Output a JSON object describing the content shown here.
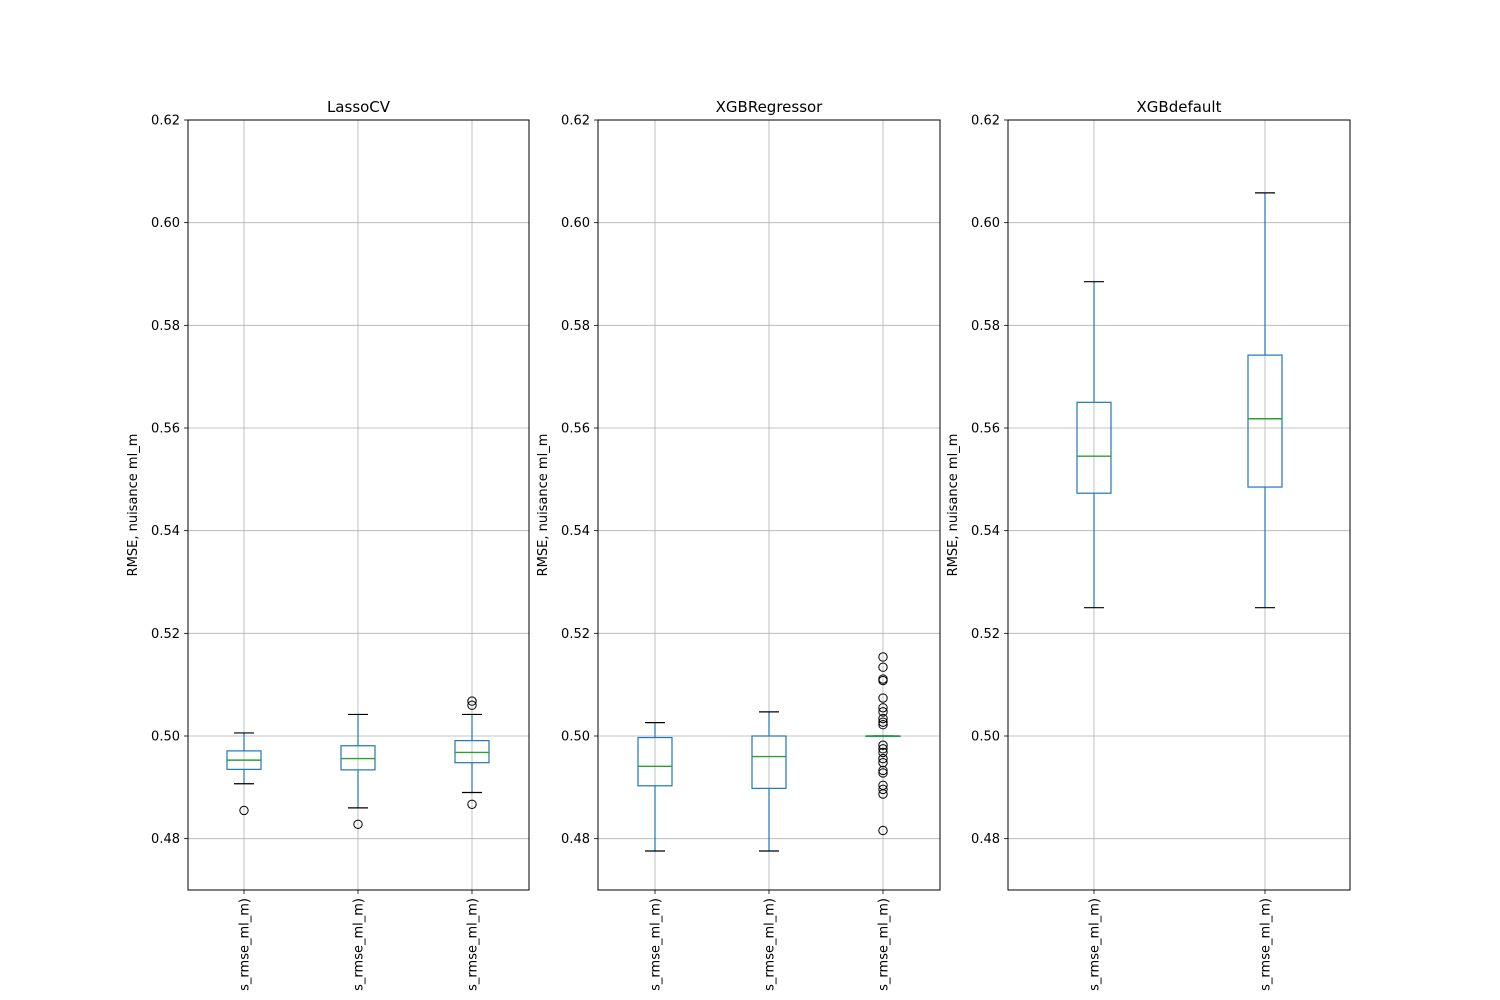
{
  "chart_data": [
    {
      "type": "box",
      "title": "LassoCV",
      "ylabel": "RMSE, nuisance ml_m",
      "ylim": [
        0.47,
        0.62
      ],
      "yticks": [
        "0.48",
        "0.50",
        "0.52",
        "0.54",
        "0.56",
        "0.58",
        "0.60",
        "0.62"
      ],
      "categories": [
        "s_rmse_ml_m)",
        "s_rmse_ml_m)",
        "s_rmse_ml_m)"
      ],
      "boxes": [
        {
          "whislo": 0.4907,
          "q1": 0.4935,
          "med": 0.4953,
          "q3": 0.4971,
          "whishi": 0.5006,
          "fliers": [
            0.4855
          ]
        },
        {
          "whislo": 0.486,
          "q1": 0.4934,
          "med": 0.4956,
          "q3": 0.4981,
          "whishi": 0.5042,
          "fliers": [
            0.4828
          ]
        },
        {
          "whislo": 0.489,
          "q1": 0.4948,
          "med": 0.4968,
          "q3": 0.4991,
          "whishi": 0.5042,
          "fliers": [
            0.5068,
            0.506,
            0.4867
          ]
        }
      ]
    },
    {
      "type": "box",
      "title": "XGBRegressor",
      "ylabel": "RMSE, nuisance ml_m",
      "ylim": [
        0.47,
        0.62
      ],
      "yticks": [
        "0.48",
        "0.50",
        "0.52",
        "0.54",
        "0.56",
        "0.58",
        "0.60",
        "0.62"
      ],
      "categories": [
        "s_rmse_ml_m)",
        "s_rmse_ml_m)",
        "s_rmse_ml_m)"
      ],
      "boxes": [
        {
          "whislo": 0.4776,
          "q1": 0.4903,
          "med": 0.4941,
          "q3": 0.4997,
          "whishi": 0.5026,
          "fliers": []
        },
        {
          "whislo": 0.4776,
          "q1": 0.4898,
          "med": 0.496,
          "q3": 0.5,
          "whishi": 0.5047,
          "fliers": []
        },
        {
          "whislo": 0.5,
          "q1": 0.5,
          "med": 0.5,
          "q3": 0.5,
          "whishi": 0.5,
          "fliers": [
            0.5154,
            0.5134,
            0.5111,
            0.5108,
            0.5074,
            0.5055,
            0.5047,
            0.5034,
            0.5027,
            0.5022,
            0.4982,
            0.4975,
            0.4968,
            0.4956,
            0.4948,
            0.4933,
            0.4928,
            0.4904,
            0.4896,
            0.4887,
            0.4816
          ]
        }
      ]
    },
    {
      "type": "box",
      "title": "XGBdefault",
      "ylabel": "RMSE, nuisance ml_m",
      "ylim": [
        0.47,
        0.62
      ],
      "yticks": [
        "0.48",
        "0.50",
        "0.52",
        "0.54",
        "0.56",
        "0.58",
        "0.60",
        "0.62"
      ],
      "categories": [
        "s_rmse_ml_m)",
        "s_rmse_ml_m)"
      ],
      "boxes": [
        {
          "whislo": 0.525,
          "q1": 0.5473,
          "med": 0.5545,
          "q3": 0.565,
          "whishi": 0.5885,
          "fliers": []
        },
        {
          "whislo": 0.525,
          "q1": 0.5485,
          "med": 0.5618,
          "q3": 0.5742,
          "whishi": 0.6058,
          "fliers": []
        }
      ]
    }
  ],
  "colors": {
    "box": "#1f77b4",
    "median": "#2ca02c",
    "grid": "#b0b0b0",
    "axes": "#000000"
  }
}
